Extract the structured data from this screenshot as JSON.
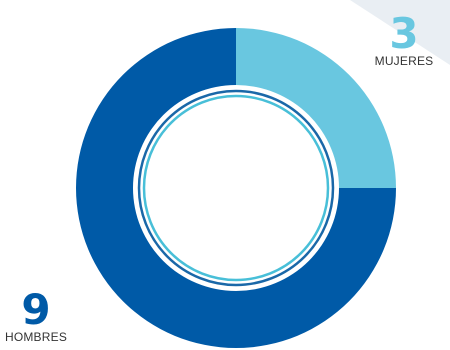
{
  "chart_data": {
    "type": "pie",
    "variant": "donut",
    "slices": [
      {
        "label": "MUJERES",
        "value": 3,
        "color": "#69c7e0"
      },
      {
        "label": "HOMBRES",
        "value": 9,
        "color": "#005aa7"
      }
    ]
  },
  "stats": {
    "women": {
      "value": "3",
      "label": "MUJERES"
    },
    "men": {
      "value": "9",
      "label": "HOMBRES"
    }
  },
  "colors": {
    "women": "#69c7e0",
    "men": "#005aa7",
    "inner_ring_dark": "#1a68a8",
    "inner_ring_light": "#48bfd8",
    "corner_tint": "#e9eef3"
  }
}
